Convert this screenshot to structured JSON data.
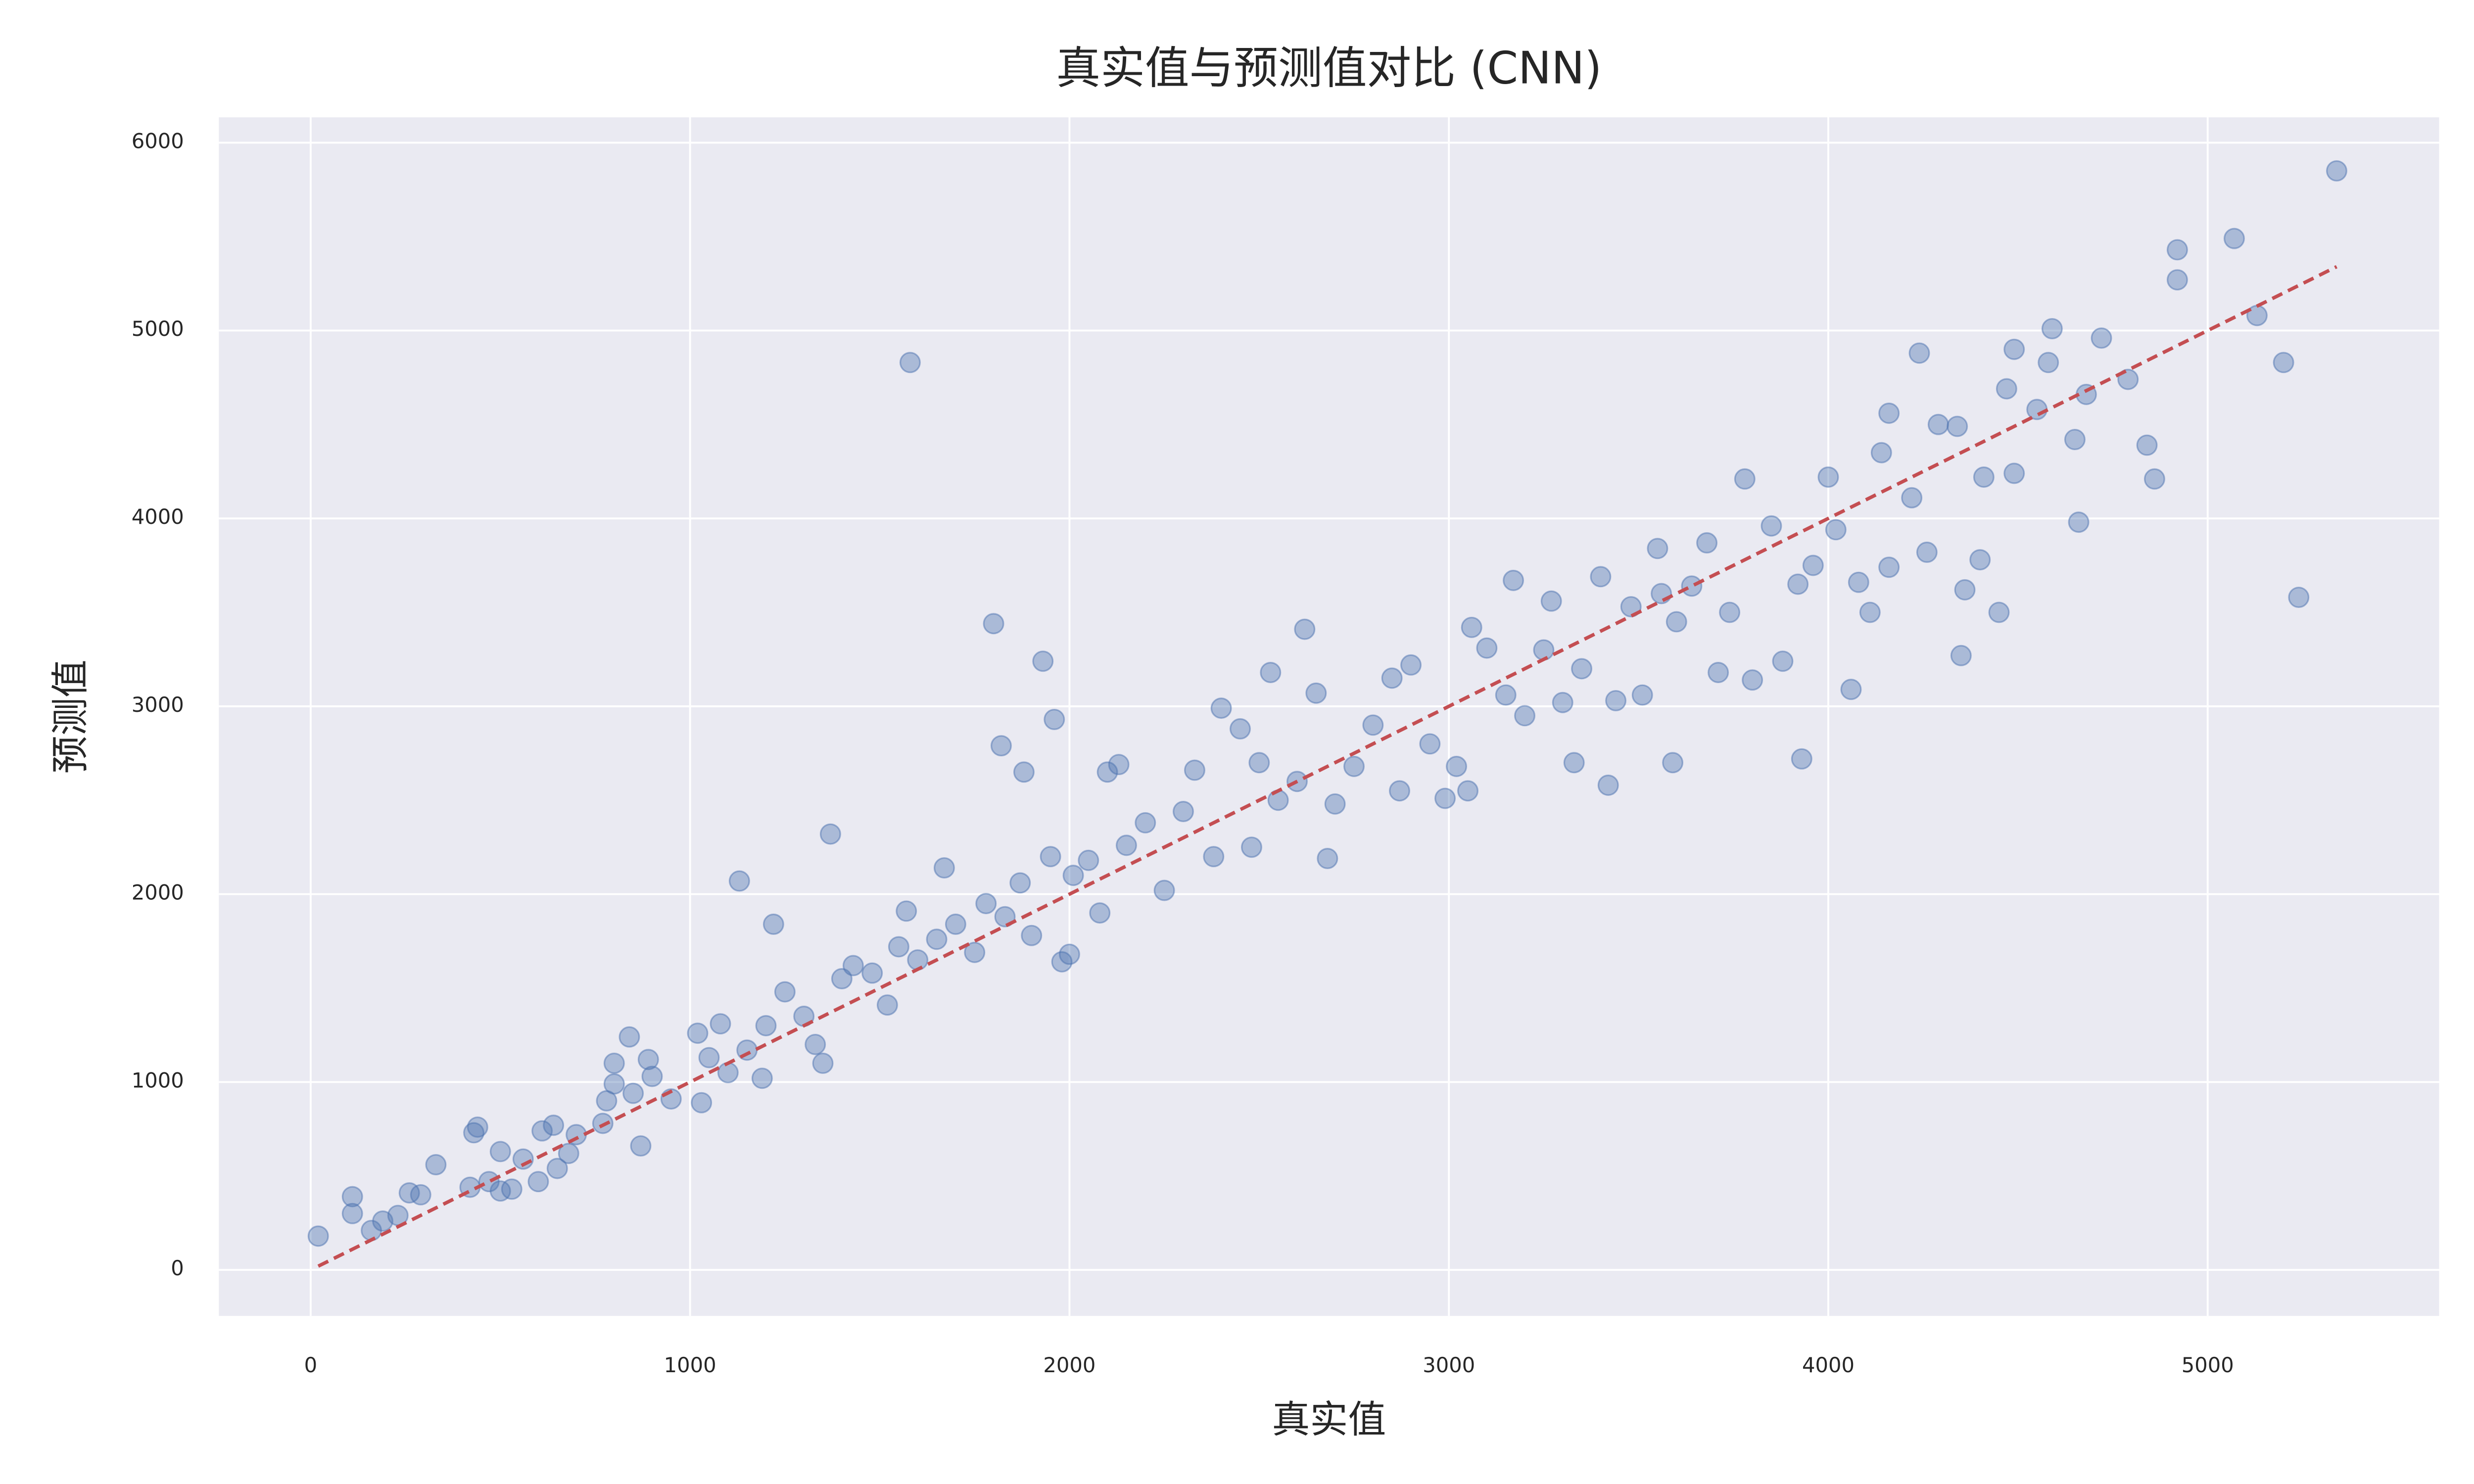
{
  "chart_data": {
    "type": "scatter",
    "title": "真实值与预测值对比 (CNN)",
    "x_label": "真实值",
    "y_label": "预测值",
    "color": "#4c72b0",
    "background": "#eaeaf2",
    "grid": true,
    "xlim": [
      -242,
      5610
    ],
    "ylim": [
      -245,
      6135
    ],
    "xticks": [
      0,
      1000,
      2000,
      3000,
      4000,
      5000
    ],
    "yticks": [
      0,
      1000,
      2000,
      3000,
      4000,
      5000,
      6000
    ],
    "x": [
      1580,
      1800,
      1930,
      1820,
      1960,
      1880,
      1130,
      1370,
      1220,
      5240,
      4660,
      3930,
      3590,
      4060,
      2620,
      2530,
      1670,
      20,
      110,
      110,
      160,
      190,
      230,
      260,
      290,
      330,
      420,
      430,
      440,
      470,
      500,
      500,
      530,
      560,
      600,
      610,
      640,
      650,
      680,
      700,
      770,
      780,
      800,
      800,
      840,
      850,
      870,
      890,
      900,
      950,
      1020,
      1030,
      1050,
      1080,
      1100,
      1150,
      1190,
      1200,
      1250,
      1300,
      1330,
      1350,
      1400,
      1430,
      1480,
      1520,
      1550,
      1570,
      1600,
      1650,
      1700,
      1750,
      1780,
      1830,
      1870,
      1900,
      1950,
      1980,
      2000,
      2010,
      2050,
      2080,
      2100,
      2130,
      2150,
      2200,
      2250,
      2300,
      2330,
      2380,
      2400,
      2450,
      2480,
      2500,
      2550,
      2600,
      2650,
      2680,
      2700,
      2750,
      2800,
      2850,
      2870,
      2900,
      2950,
      2990,
      3020,
      3050,
      3060,
      3100,
      3150,
      3170,
      3200,
      3250,
      3270,
      3300,
      3330,
      3350,
      3400,
      3420,
      3440,
      3480,
      3510,
      3550,
      3560,
      3600,
      3640,
      3680,
      3710,
      3740,
      3780,
      3800,
      3850,
      3880,
      3920,
      3960,
      4000,
      4020,
      4080,
      4110,
      4140,
      4160,
      4160,
      4220,
      4240,
      4260,
      4290,
      4340,
      4360,
      4350,
      4400,
      4410,
      4450,
      4470,
      4490,
      4490,
      4550,
      4580,
      4590,
      4650,
      4680,
      4720,
      4790,
      4840,
      4860,
      4920,
      4920,
      5070,
      5130,
      5200,
      5340
    ],
    "values": [
      4830,
      3440,
      3240,
      2790,
      2930,
      2650,
      2070,
      2320,
      1840,
      3580,
      3980,
      2720,
      2700,
      3090,
      3410,
      3180,
      2140,
      180,
      390,
      300,
      210,
      260,
      290,
      410,
      400,
      560,
      440,
      730,
      760,
      470,
      420,
      630,
      430,
      590,
      470,
      740,
      770,
      540,
      620,
      720,
      780,
      900,
      1100,
      990,
      1240,
      940,
      660,
      1120,
      1030,
      910,
      1260,
      890,
      1130,
      1310,
      1050,
      1170,
      1020,
      1300,
      1480,
      1350,
      1200,
      1100,
      1550,
      1620,
      1580,
      1410,
      1720,
      1910,
      1650,
      1760,
      1840,
      1690,
      1950,
      1880,
      2060,
      1780,
      2200,
      1640,
      1680,
      2100,
      2180,
      1900,
      2650,
      2690,
      2260,
      2380,
      2020,
      2440,
      2660,
      2200,
      2990,
      2880,
      2250,
      2700,
      2500,
      2600,
      3070,
      2190,
      2480,
      2680,
      2900,
      3150,
      2550,
      3220,
      2800,
      2510,
      2680,
      2550,
      3420,
      3310,
      3060,
      3670,
      2950,
      3300,
      3560,
      3020,
      2700,
      3200,
      3690,
      2580,
      3030,
      3530,
      3060,
      3840,
      3600,
      3450,
      3640,
      3870,
      3180,
      3500,
      4210,
      3140,
      3960,
      3240,
      3650,
      3750,
      4220,
      3940,
      3660,
      3500,
      4350,
      3740,
      4560,
      4110,
      4880,
      3820,
      4500,
      4490,
      3620,
      3270,
      3780,
      4220,
      3500,
      4690,
      4900,
      4240,
      4580,
      4830,
      5010,
      4420,
      4660,
      4960,
      4740,
      4390,
      4210,
      5430,
      5270,
      5490,
      5080,
      4830,
      5850
    ],
    "reference_line": {
      "x": [
        20,
        5340
      ],
      "values": [
        20,
        5340
      ],
      "color": "#c44e52"
    }
  }
}
